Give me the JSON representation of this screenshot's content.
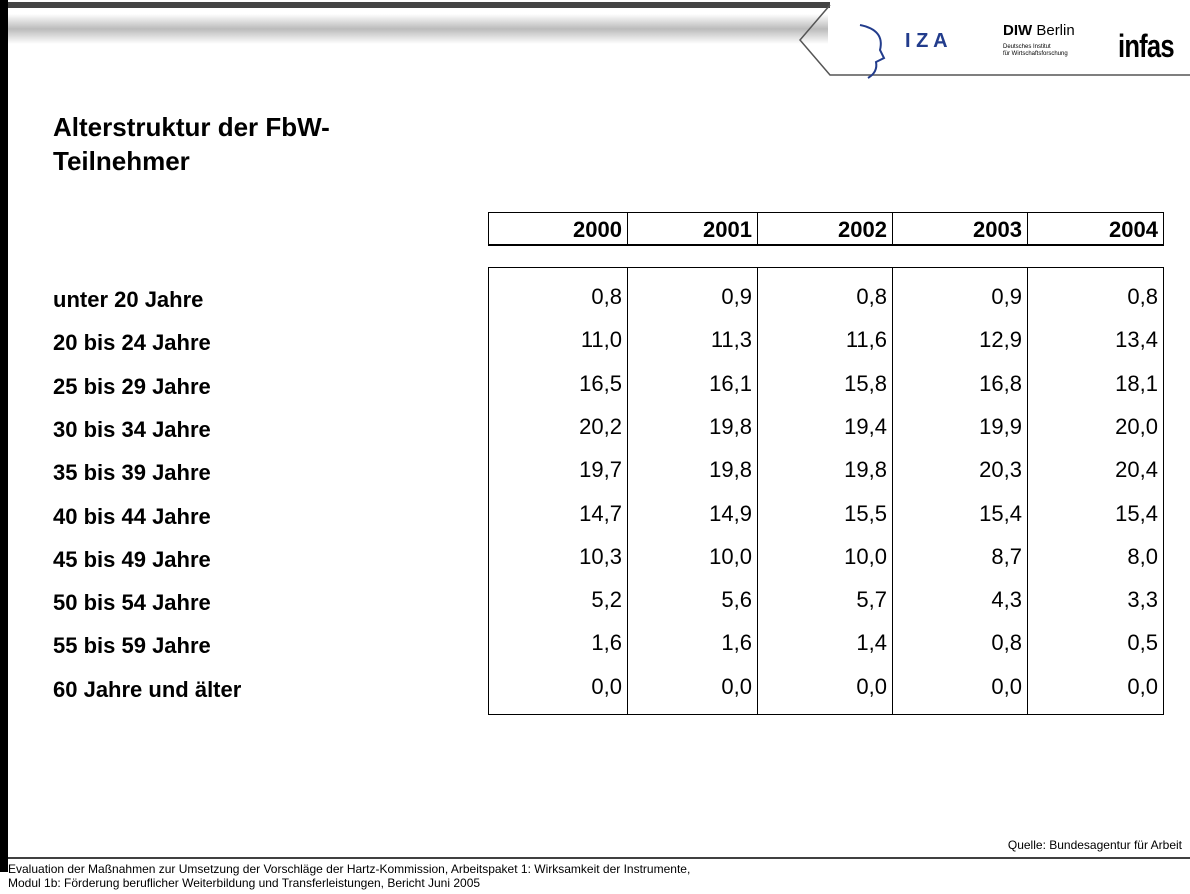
{
  "header": {
    "logos": {
      "iza": "I Z A",
      "diw": "DIW",
      "diw_city": "Berlin",
      "diw_sub1": "Deutsches Institut",
      "diw_sub2": "für Wirtschaftsforschung",
      "infas": "infas"
    }
  },
  "title": [
    "Alterstruktur der FbW-",
    "Teilnehmer"
  ],
  "table": {
    "columns": [
      "2000",
      "2001",
      "2002",
      "2003",
      "2004"
    ],
    "rows": [
      {
        "label": "unter 20 Jahre",
        "values": [
          "0,8",
          "0,9",
          "0,8",
          "0,9",
          "0,8"
        ]
      },
      {
        "label": "20 bis 24 Jahre",
        "values": [
          "11,0",
          "11,3",
          "11,6",
          "12,9",
          "13,4"
        ]
      },
      {
        "label": "25 bis 29 Jahre",
        "values": [
          "16,5",
          "16,1",
          "15,8",
          "16,8",
          "18,1"
        ]
      },
      {
        "label": "30 bis 34 Jahre",
        "values": [
          "20,2",
          "19,8",
          "19,4",
          "19,9",
          "20,0"
        ]
      },
      {
        "label": "35 bis 39 Jahre",
        "values": [
          "19,7",
          "19,8",
          "19,8",
          "20,3",
          "20,4"
        ]
      },
      {
        "label": "40 bis 44 Jahre",
        "values": [
          "14,7",
          "14,9",
          "15,5",
          "15,4",
          "15,4"
        ]
      },
      {
        "label": "45 bis 49 Jahre",
        "values": [
          "10,3",
          "10,0",
          "10,0",
          "8,7",
          "8,0"
        ]
      },
      {
        "label": "50 bis 54 Jahre",
        "values": [
          "5,2",
          "5,6",
          "5,7",
          "4,3",
          "3,3"
        ]
      },
      {
        "label": "55 bis 59 Jahre",
        "values": [
          "1,6",
          "1,6",
          "1,4",
          "0,8",
          "0,5"
        ]
      },
      {
        "label": "60 Jahre und älter",
        "values": [
          "0,0",
          "0,0",
          "0,0",
          "0,0",
          "0,0"
        ]
      }
    ]
  },
  "source": "Quelle: Bundesagentur für Arbeit",
  "footer": [
    "Evaluation der Maßnahmen zur Umsetzung der Vorschläge der Hartz-Kommission, Arbeitspaket 1: Wirksamkeit der Instrumente,",
    "Modul 1b: Förderung beruflicher Weiterbildung und Transferleistungen, Bericht Juni 2005"
  ]
}
